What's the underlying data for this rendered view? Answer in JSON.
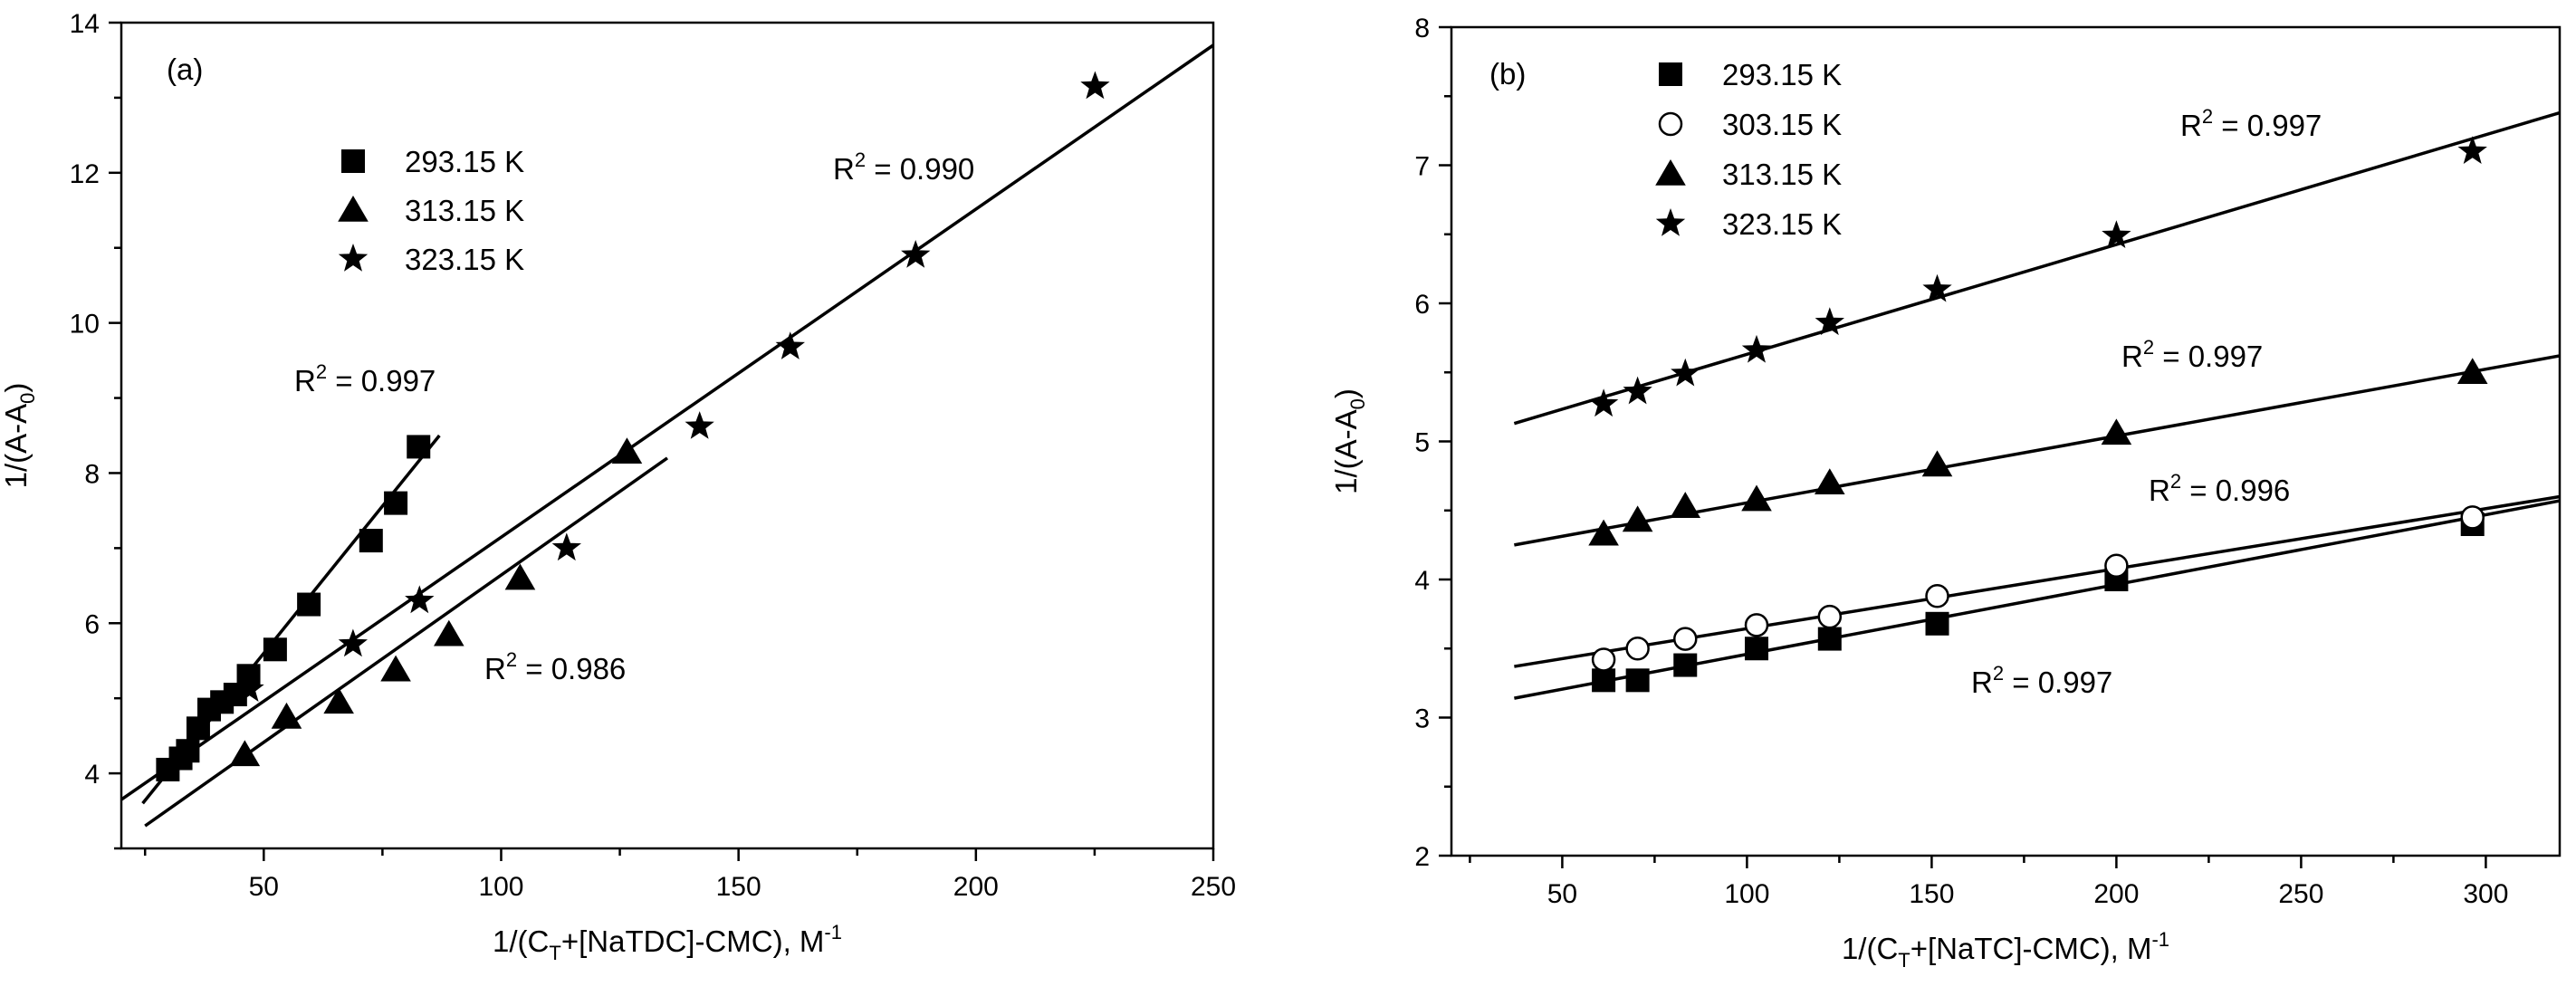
{
  "chart_data": [
    {
      "type": "scatter",
      "panel_label": "(a)",
      "xlabel_parts": [
        "1/(C",
        "T",
        "+[NaTDC]-CMC), M",
        "-1"
      ],
      "ylabel_parts": [
        "1/(A-A",
        "0",
        ")"
      ],
      "xlim": [
        20,
        250
      ],
      "ylim": [
        3,
        14
      ],
      "xticks": [
        50,
        100,
        150,
        200,
        250
      ],
      "yticks": [
        4,
        6,
        8,
        10,
        12,
        14
      ],
      "legend": "top-left",
      "series": [
        {
          "name": "293.15 K",
          "marker": "square",
          "x": [
            29.8,
            32.5,
            34.0,
            36.2,
            38.5,
            41.2,
            44.0,
            46.8,
            52.4,
            59.5,
            72.6,
            77.8,
            82.6
          ],
          "y": [
            4.05,
            4.2,
            4.3,
            4.6,
            4.85,
            4.95,
            5.05,
            5.3,
            5.65,
            6.25,
            7.1,
            7.6,
            8.35
          ],
          "fit": {
            "x": [
              24.5,
              87
            ],
            "y": [
              3.6,
              8.5
            ]
          },
          "r2": {
            "label": "R",
            "sup": "2",
            "value": " = 0.997"
          }
        },
        {
          "name": "313.15 K",
          "marker": "triangle",
          "x": [
            46.0,
            54.8,
            65.8,
            77.8,
            89.0,
            104.0,
            126.5
          ],
          "y": [
            4.25,
            4.75,
            4.95,
            5.38,
            5.85,
            6.6,
            8.28
          ],
          "fit": {
            "x": [
              25,
              135
            ],
            "y": [
              3.3,
              8.2
            ]
          },
          "r2": {
            "label": "R",
            "sup": "2",
            "value": " = 0.986"
          }
        },
        {
          "name": "323.15 K",
          "marker": "star",
          "x": [
            47.0,
            68.8,
            82.8,
            113.8,
            141.8,
            160.9,
            187.3,
            225.1
          ],
          "y": [
            5.12,
            5.72,
            6.3,
            7.0,
            8.62,
            9.68,
            10.9,
            13.15
          ],
          "fit": {
            "x": [
              20,
              250
            ],
            "y": [
              3.65,
              13.7
            ]
          },
          "r2": {
            "label": "R",
            "sup": "2",
            "value": " = 0.990"
          }
        }
      ]
    },
    {
      "type": "scatter",
      "panel_label": "(b)",
      "xlabel_parts": [
        "1/(C",
        "T",
        "+[NaTC]-CMC), M",
        "-1"
      ],
      "ylabel_parts": [
        "1/(A-A",
        "0",
        ")"
      ],
      "xlim": [
        20,
        320
      ],
      "ylim": [
        2,
        8
      ],
      "xticks": [
        50,
        100,
        150,
        200,
        250,
        300
      ],
      "yticks": [
        2,
        3,
        4,
        5,
        6,
        7,
        8
      ],
      "legend": "top-left",
      "series": [
        {
          "name": "293.15 K",
          "marker": "square",
          "x": [
            61.2,
            70.4,
            83.3,
            102.6,
            122.4,
            151.5,
            200.0,
            296.4
          ],
          "y": [
            3.27,
            3.27,
            3.38,
            3.5,
            3.57,
            3.68,
            4.0,
            4.4
          ],
          "fit": {
            "x": [
              37,
              320
            ],
            "y": [
              3.14,
              4.57
            ]
          },
          "r2": {
            "label": "R",
            "sup": "2",
            "value": " = 0.997"
          }
        },
        {
          "name": "303.15 K",
          "marker": "circle",
          "x": [
            61.2,
            70.4,
            83.3,
            102.6,
            122.4,
            151.5,
            200.0,
            296.4
          ],
          "y": [
            3.42,
            3.5,
            3.57,
            3.67,
            3.73,
            3.88,
            4.1,
            4.45
          ],
          "fit": {
            "x": [
              37,
              320
            ],
            "y": [
              3.37,
              4.6
            ]
          },
          "r2": {
            "label": "R",
            "sup": "2",
            "value": " = 0.996"
          }
        },
        {
          "name": "313.15 K",
          "marker": "triangle",
          "x": [
            61.2,
            70.4,
            83.3,
            102.6,
            122.4,
            151.5,
            200.0,
            296.4
          ],
          "y": [
            4.33,
            4.43,
            4.53,
            4.58,
            4.7,
            4.83,
            5.06,
            5.5
          ],
          "fit": {
            "x": [
              37,
              320
            ],
            "y": [
              4.25,
              5.62
            ]
          },
          "r2": {
            "label": "R",
            "sup": "2",
            "value": " = 0.997"
          }
        },
        {
          "name": "323.15 K",
          "marker": "star",
          "x": [
            61.2,
            70.4,
            83.3,
            102.6,
            122.4,
            151.5,
            200.0,
            296.4
          ],
          "y": [
            5.27,
            5.36,
            5.49,
            5.66,
            5.86,
            6.1,
            6.49,
            7.1
          ],
          "fit": {
            "x": [
              37,
              320
            ],
            "y": [
              5.13,
              7.38
            ]
          },
          "r2": {
            "label": "R",
            "sup": "2",
            "value": " = 0.997"
          }
        }
      ]
    }
  ]
}
